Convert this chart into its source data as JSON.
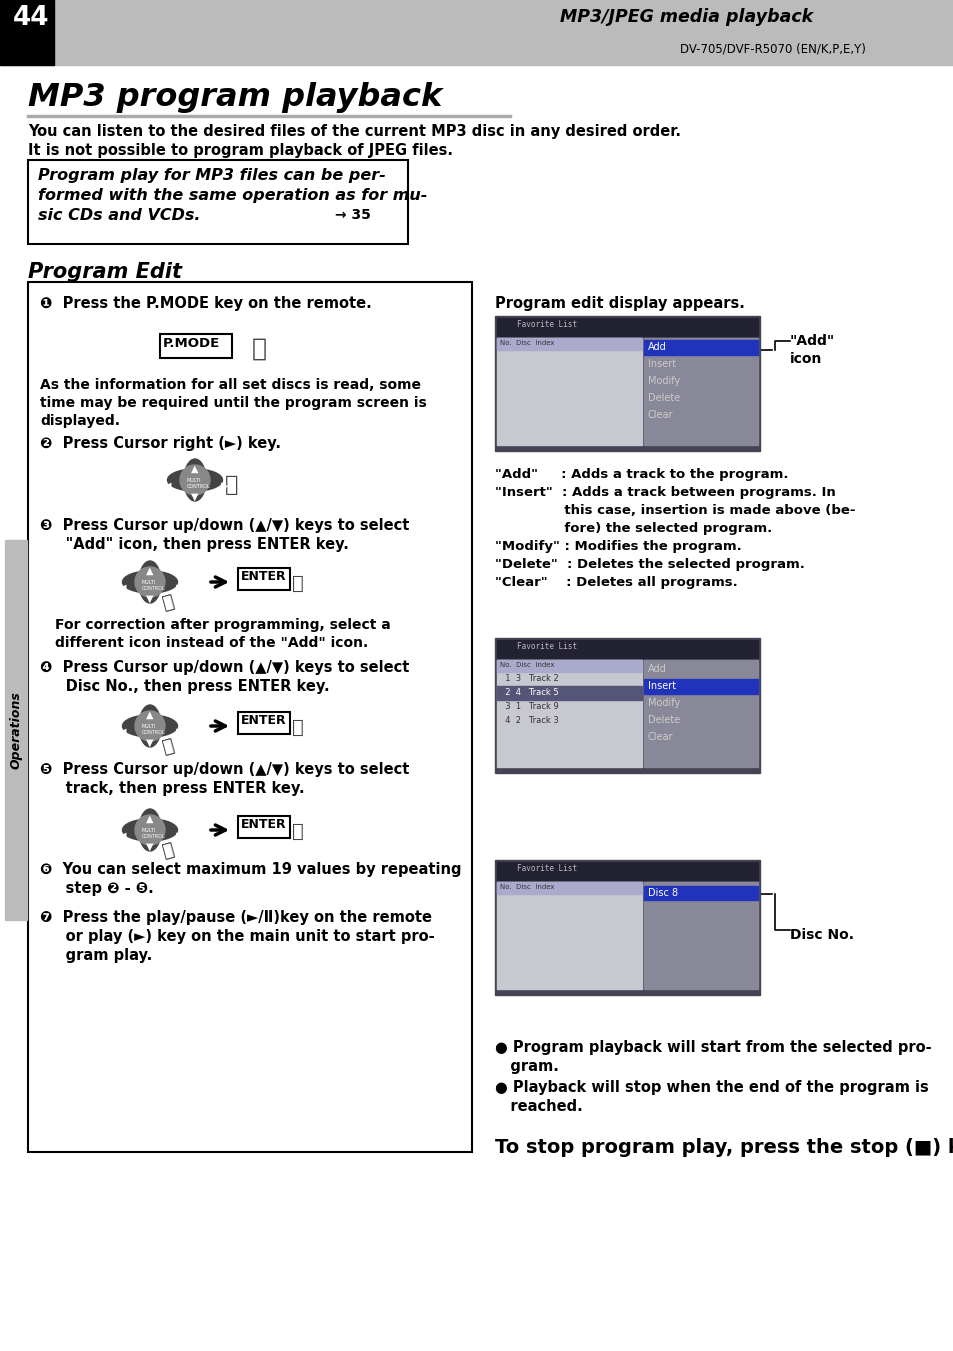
{
  "page_number": "44",
  "header_title": "MP3/JPEG media playback",
  "header_subtitle": "DV-705/DVF-R5070 (EN/K,P,E,Y)",
  "main_title": "MP3 program playback",
  "intro_line1": "You can listen to the desired files of the current MP3 disc in any desired order.",
  "intro_line2": "It is not possible to program playback of JPEG files.",
  "note_line1": "Program play for MP3 files can be per-",
  "note_line2": "formed with the same operation as for mu-",
  "note_line3": "sic CDs and VCDs.",
  "note_ref": "→ 35",
  "section_title": "Program Edit",
  "step1": "❶  Press the P.MODE key on the remote.",
  "step1_note1": "As the information for all set discs is read, some",
  "step1_note2": "time may be required until the program screen is",
  "step1_note3": "displayed.",
  "step2": "❷  Press Cursor right (►) key.",
  "step3a": "❸  Press Cursor up/down (▲/▼) keys to select",
  "step3b": "     \"Add\" icon, then press ENTER key.",
  "step3_note1": "For correction after programming, select a",
  "step3_note2": "different icon instead of the \"Add\" icon.",
  "step4a": "❹  Press Cursor up/down (▲/▼) keys to select",
  "step4b": "     Disc No., then press ENTER key.",
  "step5a": "❺  Press Cursor up/down (▲/▼) keys to select",
  "step5b": "     track, then press ENTER key.",
  "step6a": "❻  You can select maximum 19 values by repeating",
  "step6b": "     step ❷ - ❺.",
  "step7a": "❼  Press the play/pause (►/Ⅱ)key on the remote",
  "step7b": "     or play (►) key on the main unit to start pro-",
  "step7c": "     gram play.",
  "right_intro": "Program edit display appears.",
  "add_label1": "\"Add\"",
  "add_label2": "icon",
  "desc1a": "\"Add\"",
  "desc1b": "  : Adds a track to the program.",
  "desc2a": "\"Insert\"",
  "desc2b": "  : Adds a track between programs. In",
  "desc2c": "               this case, insertion is made above (be-",
  "desc2d": "               fore) the selected program.",
  "desc3a": "\"Modify\"",
  "desc3b": " : Modifies the program.",
  "desc4a": "\"Delete\"",
  "desc4b": "  : Deletes the selected program.",
  "desc5a": "\"Clear\"",
  "desc5b": "    : Deletes all programs.",
  "disc_no_label": "Disc No.",
  "bullet1a": "● Program playback will start from the selected pro-",
  "bullet1b": "   gram.",
  "bullet2a": "● Playback will stop when the end of the program is",
  "bullet2b": "   reached.",
  "stop_line": "To stop program play, press the stop (■) key.",
  "ops_label": "Operations",
  "bg": "#ffffff",
  "header_bg": "#bbbbbb",
  "tab_bg": "#999999",
  "note_box_border": "#555555",
  "steps_border": "#333333",
  "screen_outer": "#444455",
  "screen_header": "#222233",
  "screen_body_left": "#cccccc",
  "screen_body_right": "#aaaaaa",
  "screen_selected": "#222288",
  "screen_selected2": "#444455",
  "arrow_color": "#000000"
}
